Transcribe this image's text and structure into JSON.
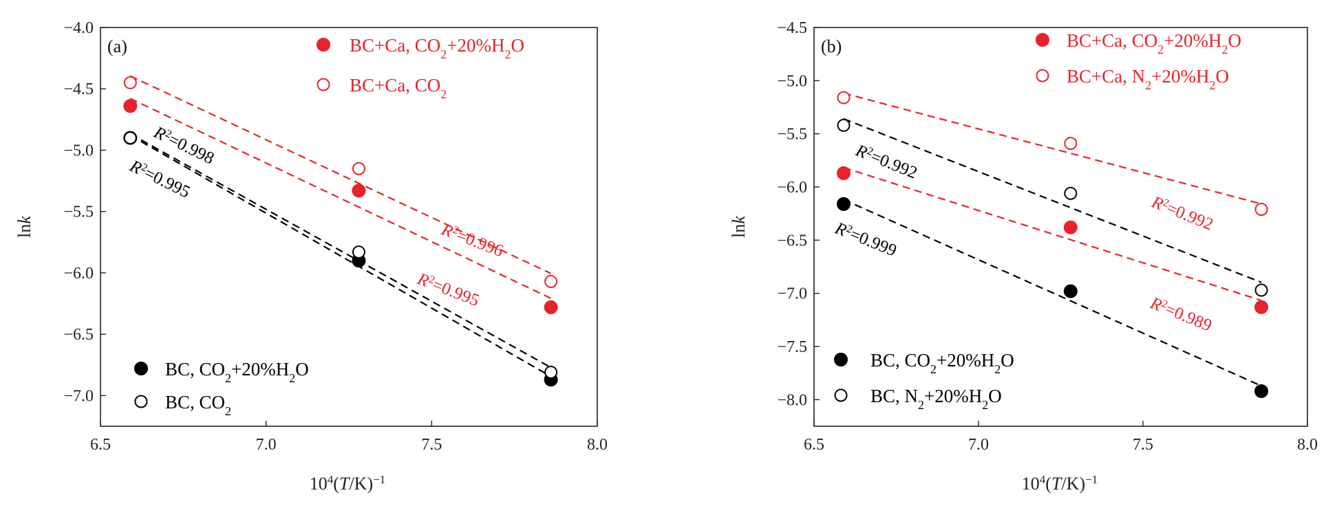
{
  "chart_data": [
    {
      "type": "scatter",
      "panel_label": "(a)",
      "xlabel": {
        "main": "10",
        "sup": "4",
        "mid": "(",
        "italic": "T",
        "rest": "/K)",
        "sup2": "−1"
      },
      "ylabel": {
        "plain": "ln",
        "italic": "k"
      },
      "xlim": [
        6.5,
        8.0
      ],
      "ylim": [
        -7.25,
        -4.0
      ],
      "x_ticks": [
        6.5,
        7.0,
        7.5,
        8.0
      ],
      "x_tick_labels": [
        "6.5",
        "7.0",
        "7.5",
        "8.0"
      ],
      "y_ticks": [
        -4.0,
        -4.5,
        -5.0,
        -5.5,
        -6.0,
        -6.5,
        -7.0
      ],
      "y_tick_labels": [
        "−4.0",
        "−4.5",
        "−5.0",
        "−5.5",
        "−6.0",
        "−6.5",
        "−7.0"
      ],
      "series": [
        {
          "name": "BC+Ca, CO2+20%H2O",
          "legend": {
            "pre": "BC+Ca, CO",
            "sub1": "2",
            "mid": "+20%H",
            "sub2": "2",
            "post": "O"
          },
          "color": "#e8222a",
          "marker": "filled",
          "x": [
            6.59,
            7.28,
            7.86
          ],
          "y": [
            -4.64,
            -5.33,
            -6.28
          ],
          "r2": {
            "sup": "2",
            "value": "=0.995"
          }
        },
        {
          "name": "BC+Ca, CO2",
          "legend": {
            "pre": "BC+Ca, CO",
            "sub1": "2",
            "mid": "",
            "sub2": "",
            "post": ""
          },
          "color": "#e8222a",
          "marker": "open",
          "x": [
            6.59,
            7.28,
            7.86
          ],
          "y": [
            -4.45,
            -5.15,
            -6.07
          ],
          "r2": {
            "sup": "2",
            "value": "=0.996"
          }
        },
        {
          "name": "BC, CO2+20%H2O",
          "legend": {
            "pre": "BC, CO",
            "sub1": "2",
            "mid": "+20%H",
            "sub2": "2",
            "post": "O"
          },
          "color": "#000000",
          "marker": "filled",
          "x": [
            6.59,
            7.28,
            7.86
          ],
          "y": [
            -4.9,
            -5.9,
            -6.87
          ],
          "r2": {
            "sup": "2",
            "value": "=0.995"
          }
        },
        {
          "name": "BC, CO2",
          "legend": {
            "pre": "BC, CO",
            "sub1": "2",
            "mid": "",
            "sub2": "",
            "post": ""
          },
          "color": "#000000",
          "marker": "open",
          "x": [
            6.59,
            7.28,
            7.86
          ],
          "y": [
            -4.9,
            -5.83,
            -6.81
          ],
          "r2": {
            "sup": "2",
            "value": "=0.998"
          }
        }
      ]
    },
    {
      "type": "scatter",
      "panel_label": "(b)",
      "xlabel": {
        "main": "10",
        "sup": "4",
        "mid": "(",
        "italic": "T",
        "rest": "/K)",
        "sup2": "−1"
      },
      "ylabel": {
        "plain": "ln",
        "italic": "k"
      },
      "xlim": [
        6.5,
        8.0
      ],
      "ylim": [
        -8.25,
        -4.5
      ],
      "x_ticks": [
        6.5,
        7.0,
        7.5,
        8.0
      ],
      "x_tick_labels": [
        "6.5",
        "7.0",
        "7.5",
        "8.0"
      ],
      "y_ticks": [
        -4.5,
        -5.0,
        -5.5,
        -6.0,
        -6.5,
        -7.0,
        -7.5,
        -8.0
      ],
      "y_tick_labels": [
        "−4.5",
        "−5.0",
        "−5.5",
        "−6.0",
        "−6.5",
        "−7.0",
        "−7.5",
        "−8.0"
      ],
      "series": [
        {
          "name": "BC+Ca, CO2+20%H2O",
          "legend": {
            "pre": "BC+Ca, CO",
            "sub1": "2",
            "mid": "+20%H",
            "sub2": "2",
            "post": "O"
          },
          "color": "#e8222a",
          "marker": "filled",
          "x": [
            6.59,
            7.28,
            7.86
          ],
          "y": [
            -5.87,
            -6.38,
            -7.13
          ],
          "r2": {
            "sup": "2",
            "value": "=0.989"
          }
        },
        {
          "name": "BC+Ca, N2+20%H2O",
          "legend": {
            "pre": "BC+Ca, N",
            "sub1": "2",
            "mid": "+20%H",
            "sub2": "2",
            "post": "O"
          },
          "color": "#e8222a",
          "marker": "open",
          "x": [
            6.59,
            7.28,
            7.86
          ],
          "y": [
            -5.16,
            -5.59,
            -6.21
          ],
          "r2": {
            "sup": "2",
            "value": "=0.992"
          }
        },
        {
          "name": "BC, CO2+20%H2O",
          "legend": {
            "pre": "BC, CO",
            "sub1": "2",
            "mid": "+20%H",
            "sub2": "2",
            "post": "O"
          },
          "color": "#000000",
          "marker": "filled",
          "x": [
            6.59,
            7.28,
            7.86
          ],
          "y": [
            -6.16,
            -6.98,
            -7.92
          ],
          "r2": {
            "sup": "2",
            "value": "=0.999"
          }
        },
        {
          "name": "BC, N2+20%H2O",
          "legend": {
            "pre": "BC, N",
            "sub1": "2",
            "mid": "+20%H",
            "sub2": "2",
            "post": "O"
          },
          "color": "#000000",
          "marker": "open",
          "x": [
            6.59,
            7.28,
            7.86
          ],
          "y": [
            -5.42,
            -6.06,
            -6.97
          ],
          "r2": {
            "sup": "2",
            "value": "=0.992"
          }
        }
      ]
    }
  ]
}
